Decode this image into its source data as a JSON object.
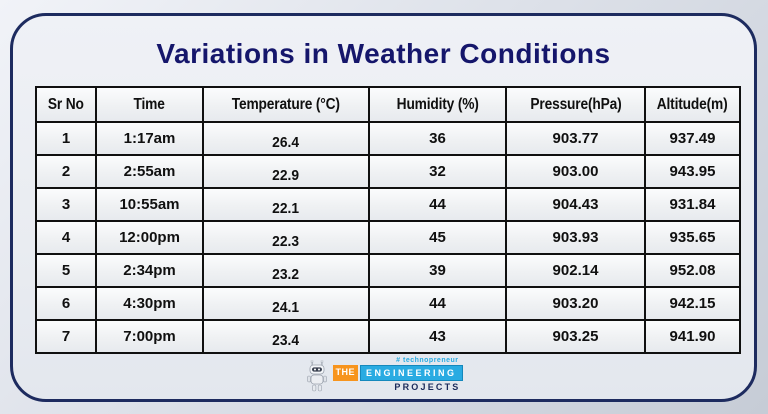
{
  "page": {
    "title": "Variations in Weather Conditions"
  },
  "table": {
    "columns": [
      "Sr No",
      "Time",
      "Temperature (°C)",
      "Humidity (%)",
      "Pressure(hPa)",
      "Altitude(m)"
    ],
    "rows": [
      [
        "1",
        "1:17am",
        "26.4",
        "36",
        "903.77",
        "937.49"
      ],
      [
        "2",
        "2:55am",
        "22.9",
        "32",
        "903.00",
        "943.95"
      ],
      [
        "3",
        "10:55am",
        "22.1",
        "44",
        "904.43",
        "931.84"
      ],
      [
        "4",
        "12:00pm",
        "22.3",
        "45",
        "903.93",
        "935.65"
      ],
      [
        "5",
        "2:34pm",
        "23.2",
        "39",
        "902.14",
        "952.08"
      ],
      [
        "6",
        "4:30pm",
        "24.1",
        "44",
        "903.20",
        "942.15"
      ],
      [
        "7",
        "7:00pm",
        "23.4",
        "43",
        "903.25",
        "941.90"
      ]
    ]
  },
  "logo": {
    "hashtag": "# technopreneur",
    "the": "THE",
    "engineering": "ENGINEERING",
    "projects": "PROJECTS"
  },
  "colors": {
    "title_navy": "#15166b",
    "card_border_navy": "#1d2b5f",
    "table_border_black": "#101010",
    "logo_orange": "#f7941d",
    "logo_blue": "#29abe2",
    "logo_navy": "#1b2a5a"
  }
}
